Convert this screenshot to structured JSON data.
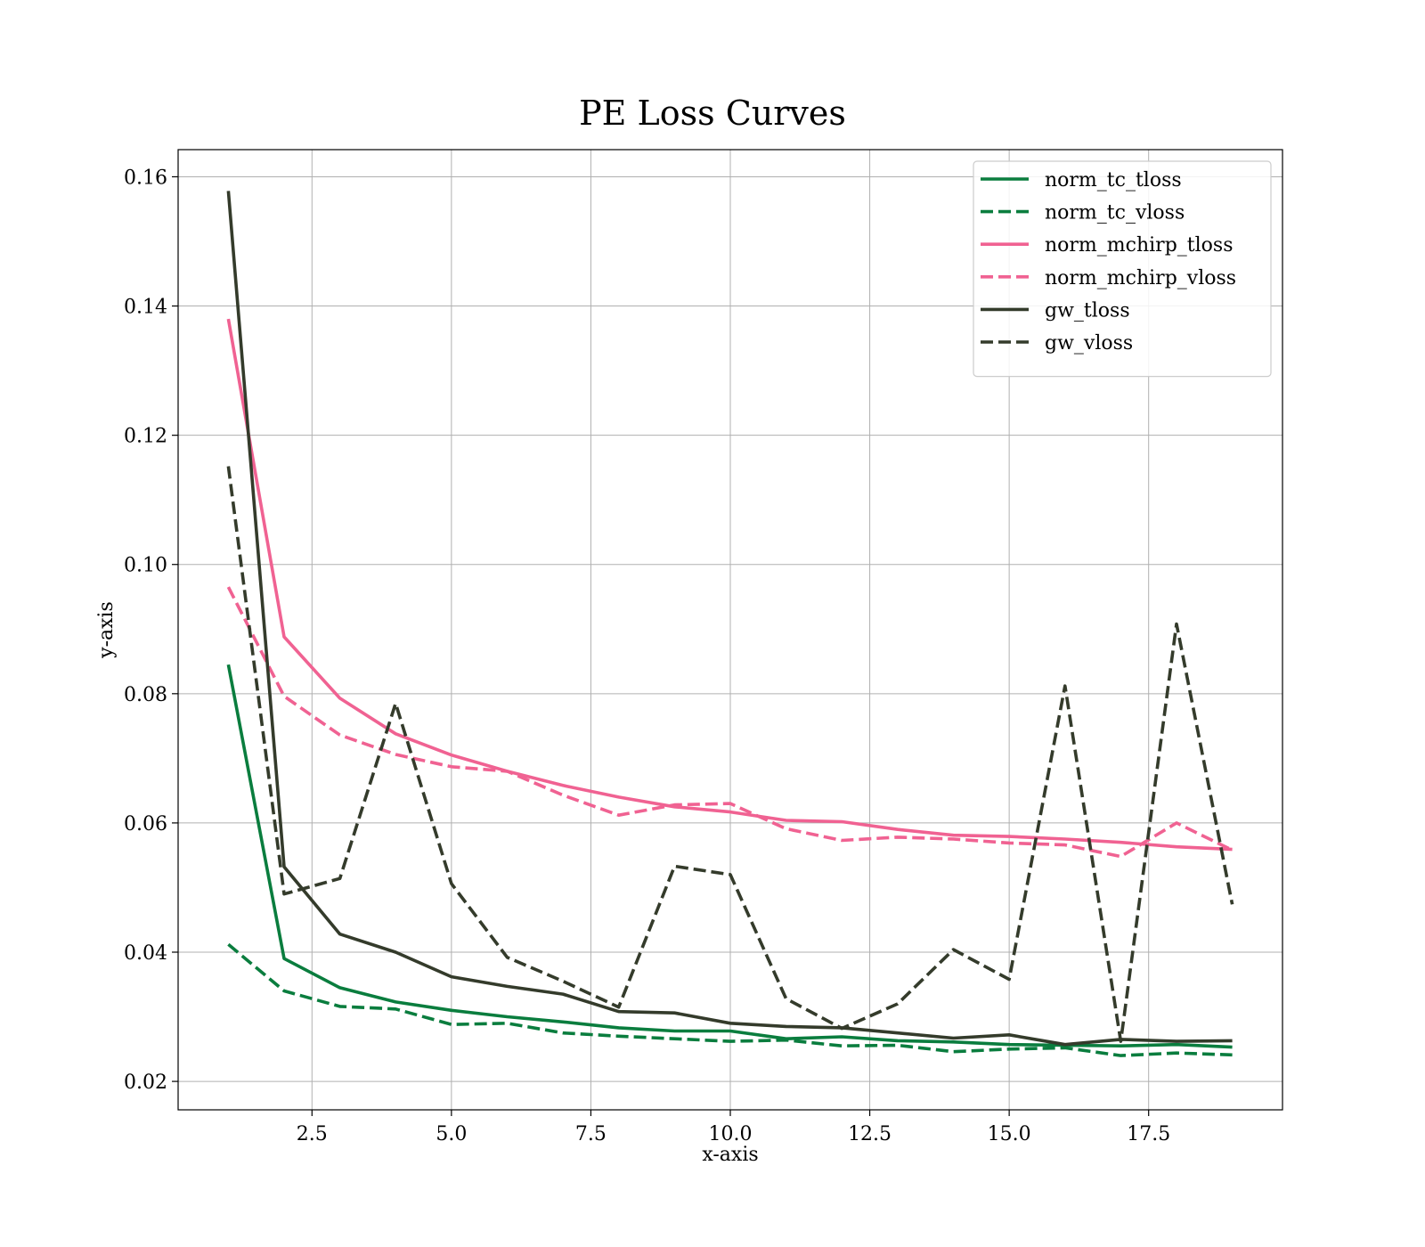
{
  "chart_data": {
    "type": "line",
    "title": "PE Loss Curves",
    "xlabel": "x-axis",
    "ylabel": "y-axis",
    "xlim": [
      0.1,
      19.9
    ],
    "ylim": [
      0.0156,
      0.1642
    ],
    "xticks": [
      2.5,
      5.0,
      7.5,
      10.0,
      12.5,
      15.0,
      17.5
    ],
    "xtick_labels": [
      "2.5",
      "5.0",
      "7.5",
      "10.0",
      "12.5",
      "15.0",
      "17.5"
    ],
    "yticks": [
      0.02,
      0.04,
      0.06,
      0.08,
      0.1,
      0.12,
      0.14,
      0.16
    ],
    "ytick_labels": [
      "0.02",
      "0.04",
      "0.06",
      "0.08",
      "0.10",
      "0.12",
      "0.14",
      "0.16"
    ],
    "grid": true,
    "legend_position": "top-right",
    "x": [
      1,
      2,
      3,
      4,
      5,
      6,
      7,
      8,
      9,
      10,
      11,
      12,
      13,
      14,
      15,
      16,
      17,
      18,
      19
    ],
    "series": [
      {
        "name": "norm_tc_tloss",
        "color": "#0a7d3e",
        "dash": "solid",
        "values": [
          0.0845,
          0.039,
          0.0345,
          0.0323,
          0.031,
          0.03,
          0.0292,
          0.0283,
          0.0278,
          0.0278,
          0.0266,
          0.0269,
          0.0263,
          0.0261,
          0.0257,
          0.0256,
          0.0255,
          0.0257,
          0.0253
        ]
      },
      {
        "name": "norm_tc_vloss",
        "color": "#0a7d3e",
        "dash": "dashed",
        "values": [
          0.0412,
          0.034,
          0.0316,
          0.0312,
          0.0288,
          0.029,
          0.0275,
          0.027,
          0.0266,
          0.0262,
          0.0264,
          0.0255,
          0.0256,
          0.0246,
          0.025,
          0.0252,
          0.024,
          0.0244,
          0.0241
        ]
      },
      {
        "name": "norm_mchirp_tloss",
        "color": "#f06292",
        "dash": "solid",
        "values": [
          0.138,
          0.0888,
          0.0793,
          0.0738,
          0.0705,
          0.068,
          0.0658,
          0.064,
          0.0625,
          0.0617,
          0.0604,
          0.0602,
          0.059,
          0.0581,
          0.0579,
          0.0575,
          0.057,
          0.0563,
          0.0559
        ]
      },
      {
        "name": "norm_mchirp_vloss",
        "color": "#f06292",
        "dash": "dashed",
        "values": [
          0.0965,
          0.0796,
          0.0736,
          0.0706,
          0.0687,
          0.068,
          0.0643,
          0.0612,
          0.0628,
          0.063,
          0.0591,
          0.0573,
          0.0578,
          0.0575,
          0.0569,
          0.0566,
          0.0548,
          0.06,
          0.0558
        ]
      },
      {
        "name": "gw_tloss",
        "color": "#343b2b",
        "dash": "solid",
        "values": [
          0.1578,
          0.0532,
          0.0428,
          0.04,
          0.0362,
          0.0347,
          0.0335,
          0.0308,
          0.0306,
          0.029,
          0.0285,
          0.0283,
          0.0275,
          0.0267,
          0.0272,
          0.0257,
          0.0265,
          0.0262,
          0.0263
        ]
      },
      {
        "name": "gw_vloss",
        "color": "#343b2b",
        "dash": "dashed",
        "values": [
          0.1152,
          0.049,
          0.0514,
          0.0785,
          0.0506,
          0.0392,
          0.0355,
          0.0315,
          0.0533,
          0.052,
          0.0328,
          0.0282,
          0.032,
          0.0404,
          0.0358,
          0.0812,
          0.0262,
          0.0908,
          0.0474
        ]
      }
    ]
  }
}
